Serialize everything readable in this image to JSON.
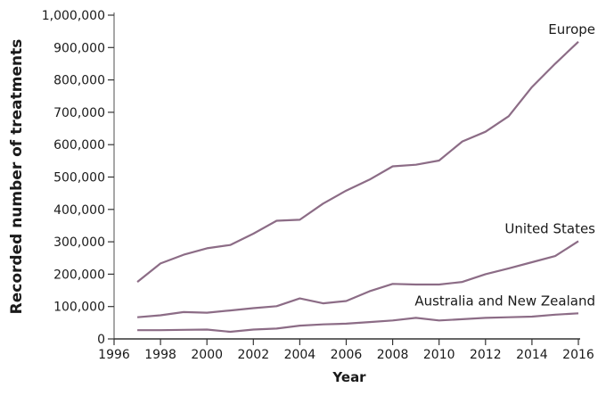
{
  "chart_data": {
    "type": "line",
    "title": "",
    "xlabel": "Year",
    "ylabel": "Recorded number of treatments",
    "xlim": [
      1996,
      2016
    ],
    "ylim": [
      0,
      1000000
    ],
    "x_ticks": [
      1996,
      1998,
      2000,
      2002,
      2004,
      2006,
      2008,
      2010,
      2012,
      2014,
      2016
    ],
    "y_ticks": [
      0,
      100000,
      200000,
      300000,
      400000,
      500000,
      600000,
      700000,
      800000,
      900000,
      1000000
    ],
    "y_tick_labels": [
      "0",
      "100,000",
      "200,000",
      "300,000",
      "400,000",
      "500,000",
      "600,000",
      "700,000",
      "800,000",
      "900,000",
      "1,000,000"
    ],
    "grid": false,
    "line_color": "#8c6c86",
    "x": [
      1997,
      1998,
      1999,
      2000,
      2001,
      2002,
      2003,
      2004,
      2005,
      2006,
      2007,
      2008,
      2009,
      2010,
      2011,
      2012,
      2013,
      2014,
      2015,
      2016
    ],
    "series": [
      {
        "name": "Europe",
        "values": [
          176000,
          233000,
          260000,
          280000,
          290000,
          325000,
          365000,
          368000,
          418000,
          458000,
          492000,
          533000,
          538000,
          551000,
          610000,
          640000,
          688000,
          778000,
          850000,
          918000
        ]
      },
      {
        "name": "United States",
        "values": [
          67000,
          73000,
          83000,
          81000,
          88000,
          95000,
          101000,
          125000,
          110000,
          117000,
          147000,
          170000,
          168000,
          168000,
          176000,
          200000,
          218000,
          237000,
          256000,
          302000
        ]
      },
      {
        "name": "Australia and New Zealand",
        "values": [
          27000,
          27000,
          28000,
          29000,
          22000,
          29000,
          32000,
          41000,
          45000,
          47000,
          52000,
          57000,
          65000,
          57000,
          61000,
          65000,
          67000,
          69000,
          75000,
          79000
        ]
      }
    ]
  }
}
